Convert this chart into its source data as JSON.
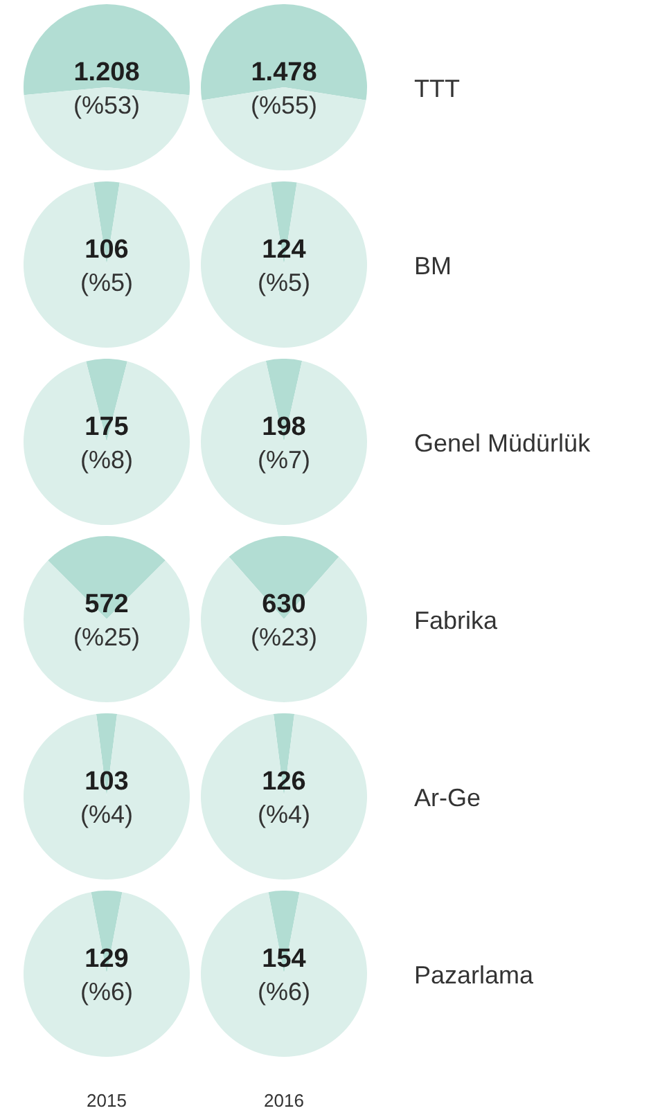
{
  "chart_data": [
    {
      "type": "pie",
      "categories": [
        null,
        null
      ],
      "values": [
        53,
        47
      ],
      "colors": [
        "#b2ddd3",
        "#dbefea"
      ],
      "annotations": [
        "1.208",
        "(%53)"
      ]
    },
    {
      "type": "pie",
      "categories": [
        null,
        null
      ],
      "values": [
        55,
        45
      ],
      "colors": [
        "#b2ddd3",
        "#dbefea"
      ],
      "annotations": [
        "1.478",
        "(%55)",
        "TTT"
      ]
    },
    {
      "type": "pie",
      "categories": [
        null,
        null
      ],
      "values": [
        5,
        95
      ],
      "colors": [
        "#b2ddd3",
        "#dbefea"
      ],
      "annotations": [
        "106",
        "(%5)"
      ]
    },
    {
      "type": "pie",
      "categories": [
        null,
        null
      ],
      "values": [
        5,
        95
      ],
      "colors": [
        "#b2ddd3",
        "#dbefea"
      ],
      "annotations": [
        "124",
        "(%5)",
        "BM"
      ]
    },
    {
      "type": "pie",
      "categories": [
        null,
        null
      ],
      "values": [
        8,
        92
      ],
      "colors": [
        "#b2ddd3",
        "#dbefea"
      ],
      "annotations": [
        "175",
        "(%8)"
      ]
    },
    {
      "type": "pie",
      "categories": [
        null,
        null
      ],
      "values": [
        7,
        93
      ],
      "colors": [
        "#b2ddd3",
        "#dbefea"
      ],
      "annotations": [
        "198",
        "(%7)",
        "Genel Müdürlük"
      ]
    },
    {
      "type": "pie",
      "categories": [
        null,
        null
      ],
      "values": [
        25,
        75
      ],
      "colors": [
        "#b2ddd3",
        "#dbefea"
      ],
      "annotations": [
        "572",
        "(%25)"
      ]
    },
    {
      "type": "pie",
      "categories": [
        null,
        null
      ],
      "values": [
        23,
        77
      ],
      "colors": [
        "#b2ddd3",
        "#dbefea"
      ],
      "annotations": [
        "630",
        "(%23)",
        "Fabrika"
      ]
    },
    {
      "type": "pie",
      "categories": [
        null,
        null
      ],
      "values": [
        4,
        96
      ],
      "colors": [
        "#b2ddd3",
        "#dbefea"
      ],
      "annotations": [
        "103",
        "(%4)"
      ]
    },
    {
      "type": "pie",
      "categories": [
        null,
        null
      ],
      "values": [
        4,
        96
      ],
      "colors": [
        "#b2ddd3",
        "#dbefea"
      ],
      "annotations": [
        "126",
        "(%4)",
        "Ar-Ge"
      ]
    },
    {
      "type": "pie",
      "categories": [
        null,
        null
      ],
      "values": [
        6,
        94
      ],
      "colors": [
        "#b2ddd3",
        "#dbefea"
      ],
      "annotations": [
        "129",
        "(%6)"
      ],
      "xlabel": "2015"
    },
    {
      "type": "pie",
      "categories": [
        null,
        null
      ],
      "values": [
        6,
        94
      ],
      "colors": [
        "#b2ddd3",
        "#dbefea"
      ],
      "annotations": [
        "154",
        "(%6)",
        "Pazarlama"
      ],
      "xlabel": "2016"
    }
  ]
}
